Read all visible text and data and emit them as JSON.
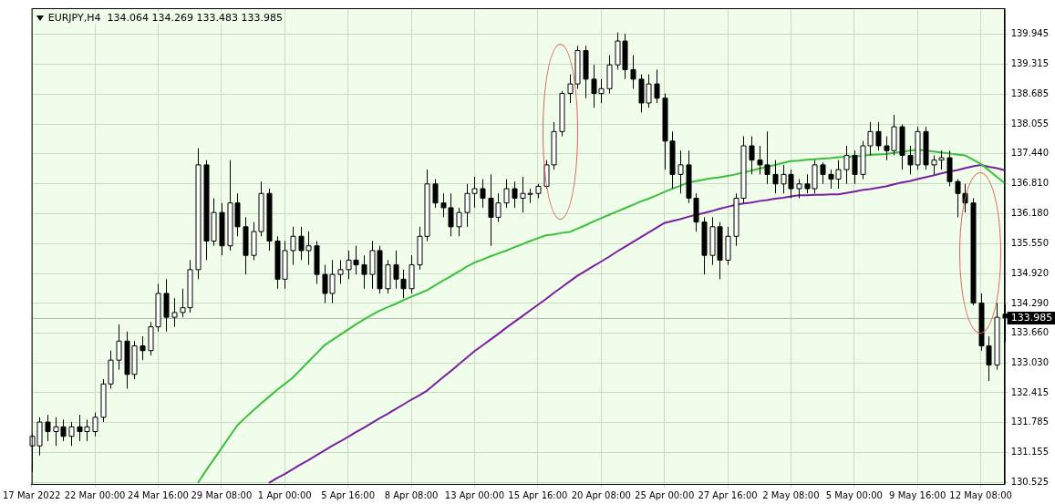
{
  "chart_data": {
    "type": "candlestick",
    "title": "EURJPY,H4  134.064 134.269 133.483 133.985",
    "categories": [
      "17 Mar 2022",
      null,
      null,
      null,
      null,
      null,
      null,
      null,
      "22 Mar 00:00",
      null,
      null,
      null,
      null,
      null,
      null,
      null,
      "24 Mar 16:00",
      null,
      null,
      null,
      null,
      null,
      null,
      null,
      "29 Mar 08:00",
      null,
      null,
      null,
      null,
      null,
      null,
      null,
      "1 Apr 00:00",
      null,
      null,
      null,
      null,
      null,
      null,
      null,
      "5 Apr 16:00",
      null,
      null,
      null,
      null,
      null,
      null,
      null,
      "8 Apr 08:00",
      null,
      null,
      null,
      null,
      null,
      null,
      null,
      "13 Apr 00:00",
      null,
      null,
      null,
      null,
      null,
      null,
      null,
      "15 Apr 16:00",
      null,
      null,
      null,
      null,
      null,
      null,
      null,
      "20 Apr 08:00",
      null,
      null,
      null,
      null,
      null,
      null,
      null,
      "25 Apr 00:00",
      null,
      null,
      null,
      null,
      null,
      null,
      null,
      "27 Apr 16:00",
      null,
      null,
      null,
      null,
      null,
      null,
      null,
      "2 May 08:00",
      null,
      null,
      null,
      null,
      null,
      null,
      null,
      "5 May 00:00",
      null,
      null,
      null,
      null,
      null,
      null,
      null,
      "9 May 16:00",
      null,
      null,
      null,
      null,
      null,
      null,
      null,
      "12 May 08:00",
      null,
      null,
      null
    ],
    "ohlc": [
      [
        131.3,
        131.55,
        130.75,
        131.5
      ],
      [
        131.3,
        131.9,
        131.1,
        131.8
      ],
      [
        131.8,
        131.95,
        131.4,
        131.6
      ],
      [
        131.6,
        131.9,
        131.3,
        131.7
      ],
      [
        131.7,
        131.85,
        131.4,
        131.5
      ],
      [
        131.5,
        131.8,
        131.3,
        131.7
      ],
      [
        131.7,
        131.95,
        131.4,
        131.6
      ],
      [
        131.6,
        131.85,
        131.4,
        131.7
      ],
      [
        131.6,
        132.0,
        131.5,
        131.9
      ],
      [
        131.9,
        132.7,
        131.8,
        132.6
      ],
      [
        132.6,
        133.3,
        132.5,
        133.1
      ],
      [
        133.1,
        133.85,
        132.9,
        133.5
      ],
      [
        133.5,
        133.7,
        132.5,
        132.8
      ],
      [
        132.8,
        133.5,
        132.7,
        133.4
      ],
      [
        133.4,
        133.6,
        133.1,
        133.3
      ],
      [
        133.3,
        133.9,
        133.2,
        133.8
      ],
      [
        133.8,
        134.7,
        133.7,
        134.5
      ],
      [
        134.5,
        134.8,
        133.7,
        134.0
      ],
      [
        134.0,
        134.4,
        133.8,
        134.1
      ],
      [
        134.1,
        134.6,
        134.0,
        134.2
      ],
      [
        134.2,
        135.2,
        134.1,
        135.0
      ],
      [
        135.0,
        137.55,
        134.8,
        137.2
      ],
      [
        137.2,
        137.3,
        135.2,
        135.6
      ],
      [
        135.6,
        136.5,
        135.5,
        136.2
      ],
      [
        136.2,
        136.4,
        135.3,
        135.5
      ],
      [
        135.5,
        137.3,
        135.4,
        136.4
      ],
      [
        136.4,
        136.6,
        135.7,
        135.9
      ],
      [
        135.9,
        136.1,
        134.9,
        135.3
      ],
      [
        135.3,
        136.0,
        135.2,
        135.8
      ],
      [
        135.8,
        136.85,
        135.7,
        136.6
      ],
      [
        136.6,
        136.7,
        135.4,
        135.6
      ],
      [
        135.6,
        135.7,
        134.6,
        134.8
      ],
      [
        134.8,
        135.6,
        134.6,
        135.4
      ],
      [
        135.4,
        135.9,
        135.1,
        135.7
      ],
      [
        135.7,
        135.9,
        135.2,
        135.4
      ],
      [
        135.4,
        135.8,
        135.1,
        135.5
      ],
      [
        135.5,
        135.6,
        134.7,
        134.9
      ],
      [
        134.9,
        135.1,
        134.3,
        134.5
      ],
      [
        134.5,
        135.2,
        134.3,
        134.9
      ],
      [
        134.9,
        135.2,
        134.7,
        135.0
      ],
      [
        135.0,
        135.4,
        134.8,
        135.2
      ],
      [
        135.2,
        135.5,
        134.9,
        135.1
      ],
      [
        135.1,
        135.3,
        134.6,
        134.9
      ],
      [
        134.9,
        135.6,
        134.6,
        135.4
      ],
      [
        135.4,
        135.5,
        134.5,
        134.6
      ],
      [
        134.6,
        135.2,
        134.5,
        135.1
      ],
      [
        135.1,
        135.4,
        134.6,
        134.8
      ],
      [
        134.8,
        135.0,
        134.4,
        134.6
      ],
      [
        134.6,
        135.3,
        134.5,
        135.1
      ],
      [
        135.1,
        135.9,
        135.0,
        135.7
      ],
      [
        135.7,
        137.1,
        135.6,
        136.8
      ],
      [
        136.8,
        136.9,
        136.3,
        136.4
      ],
      [
        136.4,
        136.6,
        136.1,
        136.3
      ],
      [
        136.3,
        136.6,
        135.7,
        135.9
      ],
      [
        135.9,
        136.3,
        135.7,
        136.2
      ],
      [
        136.2,
        136.8,
        135.9,
        136.6
      ],
      [
        136.6,
        136.95,
        136.3,
        136.7
      ],
      [
        136.7,
        136.9,
        136.3,
        136.5
      ],
      [
        136.5,
        137.0,
        135.5,
        136.1
      ],
      [
        136.1,
        136.6,
        136.0,
        136.4
      ],
      [
        136.4,
        136.9,
        136.3,
        136.7
      ],
      [
        136.7,
        136.85,
        136.3,
        136.5
      ],
      [
        136.5,
        136.95,
        136.2,
        136.6
      ],
      [
        136.6,
        136.7,
        136.4,
        136.6
      ],
      [
        136.6,
        136.8,
        136.5,
        136.75
      ],
      [
        136.75,
        137.3,
        136.7,
        137.2
      ],
      [
        137.2,
        138.1,
        137.1,
        137.9
      ],
      [
        137.9,
        138.75,
        137.8,
        138.7
      ],
      [
        138.7,
        139.1,
        138.5,
        138.9
      ],
      [
        138.9,
        139.7,
        138.8,
        139.6
      ],
      [
        139.6,
        139.7,
        138.6,
        139.0
      ],
      [
        139.0,
        139.3,
        138.4,
        138.7
      ],
      [
        138.7,
        139.0,
        138.5,
        138.8
      ],
      [
        138.8,
        139.5,
        138.7,
        139.3
      ],
      [
        139.3,
        139.98,
        139.2,
        139.8
      ],
      [
        139.8,
        139.95,
        139.0,
        139.2
      ],
      [
        139.2,
        139.5,
        138.8,
        139.0
      ],
      [
        139.0,
        139.1,
        138.3,
        138.5
      ],
      [
        138.5,
        139.1,
        138.4,
        138.9
      ],
      [
        138.9,
        139.2,
        138.5,
        138.6
      ],
      [
        138.6,
        138.7,
        137.1,
        137.7
      ],
      [
        137.7,
        137.9,
        136.7,
        137.0
      ],
      [
        137.0,
        137.5,
        136.6,
        137.2
      ],
      [
        137.2,
        137.5,
        136.4,
        136.5
      ],
      [
        136.5,
        136.6,
        135.8,
        136.0
      ],
      [
        136.0,
        136.1,
        134.9,
        135.3
      ],
      [
        135.3,
        136.1,
        135.1,
        135.9
      ],
      [
        135.9,
        136.0,
        134.8,
        135.2
      ],
      [
        135.2,
        135.9,
        135.1,
        135.7
      ],
      [
        135.7,
        136.6,
        135.5,
        136.5
      ],
      [
        136.5,
        137.8,
        136.4,
        137.6
      ],
      [
        137.6,
        137.8,
        137.0,
        137.3
      ],
      [
        137.3,
        137.6,
        137.0,
        137.2
      ],
      [
        137.2,
        137.9,
        136.8,
        137.0
      ],
      [
        137.0,
        137.3,
        136.6,
        136.8
      ],
      [
        136.8,
        137.2,
        136.6,
        137.0
      ],
      [
        137.0,
        137.1,
        136.5,
        136.7
      ],
      [
        136.7,
        136.9,
        136.5,
        136.8
      ],
      [
        136.8,
        137.0,
        136.6,
        136.7
      ],
      [
        136.7,
        137.3,
        136.6,
        137.2
      ],
      [
        137.2,
        137.25,
        136.8,
        137.0
      ],
      [
        137.0,
        137.1,
        136.7,
        136.9
      ],
      [
        136.9,
        137.3,
        136.7,
        137.1
      ],
      [
        137.1,
        137.6,
        136.8,
        137.4
      ],
      [
        137.4,
        137.5,
        136.8,
        137.0
      ],
      [
        137.0,
        137.7,
        136.9,
        137.6
      ],
      [
        137.6,
        138.1,
        137.4,
        137.9
      ],
      [
        137.9,
        138.1,
        137.5,
        137.6
      ],
      [
        137.6,
        137.8,
        137.3,
        137.5
      ],
      [
        137.5,
        138.25,
        137.4,
        138.0
      ],
      [
        138.0,
        138.05,
        137.1,
        137.4
      ],
      [
        137.4,
        137.6,
        137.0,
        137.2
      ],
      [
        137.2,
        138.0,
        137.1,
        137.9
      ],
      [
        137.9,
        138.0,
        137.1,
        137.2
      ],
      [
        137.2,
        137.4,
        137.0,
        137.3
      ],
      [
        137.3,
        137.5,
        137.1,
        137.35
      ],
      [
        137.35,
        137.5,
        136.75,
        136.85
      ],
      [
        136.85,
        136.9,
        136.1,
        136.6
      ],
      [
        136.6,
        136.8,
        136.2,
        136.4
      ],
      [
        136.4,
        136.5,
        134.25,
        134.3
      ],
      [
        134.3,
        134.5,
        133.3,
        133.4
      ],
      [
        133.4,
        133.6,
        132.66,
        133.0
      ],
      [
        133.0,
        134.3,
        132.9,
        134.0
      ],
      [
        134.064,
        134.269,
        133.483,
        133.985
      ]
    ],
    "series": [
      {
        "type": "line",
        "color": "#3cbf3c",
        "values": [
          null,
          null,
          null,
          null,
          null,
          null,
          null,
          null,
          null,
          null,
          null,
          null,
          null,
          null,
          null,
          null,
          null,
          null,
          null,
          null,
          null,
          130.52,
          130.77,
          131.01,
          131.25,
          131.49,
          131.73,
          131.89,
          132.04,
          132.19,
          132.33,
          132.47,
          132.6,
          132.73,
          132.9,
          133.07,
          133.24,
          133.41,
          133.52,
          133.63,
          133.74,
          133.85,
          133.95,
          134.05,
          134.14,
          134.21,
          134.28,
          134.36,
          134.43,
          134.5,
          134.57,
          134.67,
          134.77,
          134.86,
          134.96,
          135.06,
          135.15,
          135.21,
          135.28,
          135.34,
          135.4,
          135.47,
          135.53,
          135.6,
          135.66,
          135.72,
          135.74,
          135.77,
          135.79,
          135.86,
          135.93,
          136.01,
          136.08,
          136.15,
          136.22,
          136.29,
          136.36,
          136.43,
          136.49,
          136.56,
          136.63,
          136.7,
          136.76,
          136.83,
          136.86,
          136.89,
          136.92,
          136.94,
          136.97,
          137.0,
          137.04,
          137.08,
          137.12,
          137.16,
          137.2,
          137.24,
          137.28,
          137.29,
          137.31,
          137.32,
          137.33,
          137.34,
          137.36,
          137.37,
          137.38,
          137.39,
          137.41,
          137.42,
          137.43,
          137.45,
          137.47,
          137.5,
          137.52,
          137.5,
          137.48,
          137.46,
          137.44,
          137.42,
          137.4,
          137.31,
          137.22,
          137.09,
          136.95,
          136.82
        ]
      },
      {
        "type": "line",
        "color": "#7a1fa2",
        "values": [
          null,
          null,
          null,
          null,
          null,
          null,
          null,
          null,
          null,
          null,
          null,
          null,
          null,
          null,
          null,
          null,
          null,
          null,
          null,
          null,
          null,
          null,
          null,
          null,
          null,
          null,
          null,
          null,
          null,
          null,
          130.52,
          130.62,
          130.71,
          130.81,
          130.91,
          131.0,
          131.1,
          131.2,
          131.3,
          131.39,
          131.49,
          131.59,
          131.68,
          131.78,
          131.88,
          131.97,
          132.07,
          132.17,
          132.27,
          132.36,
          132.46,
          132.6,
          132.74,
          132.87,
          133.01,
          133.15,
          133.29,
          133.41,
          133.53,
          133.65,
          133.78,
          133.9,
          134.02,
          134.14,
          134.26,
          134.38,
          134.51,
          134.63,
          134.75,
          134.87,
          134.97,
          135.07,
          135.17,
          135.27,
          135.38,
          135.48,
          135.58,
          135.68,
          135.78,
          135.88,
          135.98,
          136.02,
          136.06,
          136.11,
          136.15,
          136.19,
          136.23,
          136.28,
          136.32,
          136.36,
          136.39,
          136.41,
          136.44,
          136.46,
          136.49,
          136.51,
          136.54,
          136.56,
          136.56,
          136.57,
          136.57,
          136.58,
          136.58,
          136.61,
          136.64,
          136.67,
          136.69,
          136.72,
          136.75,
          136.79,
          136.83,
          136.86,
          136.9,
          136.94,
          136.98,
          137.02,
          137.06,
          137.09,
          137.13,
          137.17,
          137.2,
          137.16,
          137.13,
          137.09
        ]
      }
    ],
    "ylim": [
      130.5,
      140.49
    ],
    "yticks": [
      {
        "value": 130.525,
        "label": "130.525"
      },
      {
        "value": 131.155,
        "label": "131.155"
      },
      {
        "value": 131.785,
        "label": "131.785"
      },
      {
        "value": 132.415,
        "label": "132.415"
      },
      {
        "value": 133.03,
        "label": "133.030"
      },
      {
        "value": 133.66,
        "label": "133.660"
      },
      {
        "value": 134.29,
        "label": "134.290"
      },
      {
        "value": 134.92,
        "label": "134.920"
      },
      {
        "value": 135.55,
        "label": "135.550"
      },
      {
        "value": 136.18,
        "label": "136.180"
      },
      {
        "value": 136.81,
        "label": "136.810"
      },
      {
        "value": 137.44,
        "label": "137.440"
      },
      {
        "value": 138.055,
        "label": "138.055"
      },
      {
        "value": 138.685,
        "label": "138.685"
      },
      {
        "value": 139.315,
        "label": "139.315"
      },
      {
        "value": 139.945,
        "label": "139.945"
      }
    ],
    "grid": true,
    "ref_lines": [
      {
        "axis": "y",
        "value": 133.985,
        "label": "133.985"
      }
    ]
  }
}
